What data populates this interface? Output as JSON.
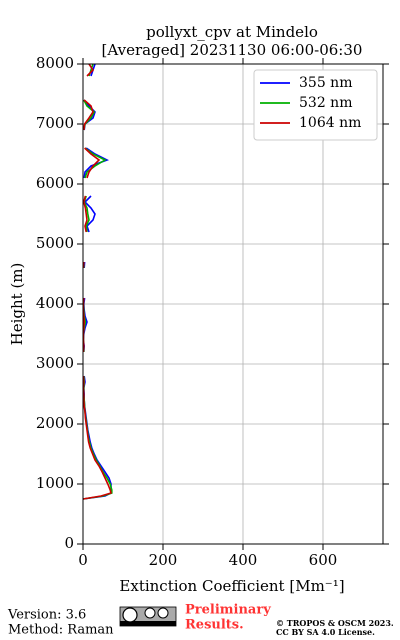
{
  "chart_data": {
    "type": "line",
    "title": [
      "pollyxt_cpv at Mindelo",
      "[Averaged] 20231130 06:00-06:30"
    ],
    "x_label": "Extinction Coefficient [Mm⁻¹]",
    "y_label": "Height (m)",
    "y": [
      750,
      800,
      850,
      900,
      1000,
      1100,
      1200,
      1300,
      1400,
      1500,
      1600,
      1700,
      1800,
      1900,
      2000,
      2100,
      2200,
      2300,
      2400,
      2500,
      2600,
      2700,
      2800,
      2900,
      3000,
      3100,
      3200,
      3300,
      3400,
      3500,
      3600,
      3700,
      3800,
      3900,
      4000,
      4100,
      4200,
      4300,
      4400,
      4500,
      4600,
      4700,
      4800,
      4900,
      5000,
      5100,
      5200,
      5300,
      5400,
      5500,
      5600,
      5700,
      5800,
      5900,
      6000,
      6100,
      6200,
      6300,
      6400,
      6500,
      6600,
      6700,
      6800,
      6900,
      7000,
      7100,
      7200,
      7300,
      7400,
      7500,
      7600,
      7700,
      7800,
      7900,
      8000
    ],
    "series": [
      {
        "name": "355 nm",
        "color": "#0000ff",
        "values": [
          0,
          55,
          70,
          70,
          70,
          65,
          55,
          45,
          35,
          28,
          22,
          18,
          15,
          12,
          10,
          8,
          6,
          4,
          3,
          3,
          2,
          5,
          3,
          null,
          null,
          null,
          2,
          3,
          1,
          2,
          5,
          10,
          5,
          3,
          2,
          4,
          null,
          null,
          null,
          null,
          3,
          4,
          null,
          null,
          null,
          null,
          15,
          10,
          25,
          30,
          20,
          5,
          20,
          null,
          null,
          3,
          5,
          20,
          60,
          30,
          8,
          null,
          null,
          3,
          5,
          25,
          30,
          15,
          2,
          null,
          null,
          null,
          20,
          25,
          30
        ]
      },
      {
        "name": "532 nm",
        "color": "#00b000",
        "values": [
          0,
          50,
          72,
          72,
          68,
          60,
          50,
          42,
          33,
          26,
          20,
          16,
          13,
          11,
          9,
          7,
          5,
          4,
          3,
          2,
          2,
          3,
          2,
          null,
          null,
          null,
          2,
          2,
          1,
          1,
          3,
          6,
          3,
          2,
          1,
          2,
          null,
          null,
          null,
          null,
          2,
          2,
          null,
          null,
          null,
          null,
          10,
          8,
          15,
          12,
          10,
          3,
          8,
          null,
          null,
          5,
          10,
          30,
          55,
          25,
          5,
          null,
          null,
          2,
          5,
          20,
          28,
          10,
          2,
          null,
          null,
          null,
          15,
          20,
          25
        ]
      },
      {
        "name": "1064 nm",
        "color": "#cc0000",
        "values": [
          0,
          45,
          70,
          68,
          62,
          55,
          48,
          40,
          30,
          24,
          18,
          14,
          12,
          10,
          8,
          6,
          5,
          3,
          2,
          2,
          1,
          2,
          1,
          null,
          null,
          null,
          1,
          2,
          1,
          1,
          2,
          3,
          2,
          1,
          1,
          2,
          null,
          null,
          null,
          null,
          1,
          2,
          null,
          null,
          null,
          null,
          8,
          5,
          10,
          8,
          6,
          2,
          6,
          null,
          null,
          10,
          15,
          25,
          40,
          20,
          4,
          null,
          null,
          2,
          4,
          15,
          25,
          20,
          3,
          null,
          null,
          null,
          10,
          25,
          15
        ]
      }
    ],
    "xlim": [
      0,
      750
    ],
    "xticks": [
      0,
      200,
      400,
      600
    ],
    "ylim": [
      0,
      8000
    ],
    "yticks": [
      0,
      1000,
      2000,
      3000,
      4000,
      5000,
      6000,
      7000,
      8000
    ],
    "grid": true,
    "legend": "upper right"
  },
  "footer": {
    "version": "Version: 3.6",
    "method": "Method: Raman",
    "status": [
      "Preliminary",
      "Results."
    ],
    "copyright": [
      "© TROPOS & OSCM 2023.",
      "CC BY SA 4.0 License."
    ]
  }
}
